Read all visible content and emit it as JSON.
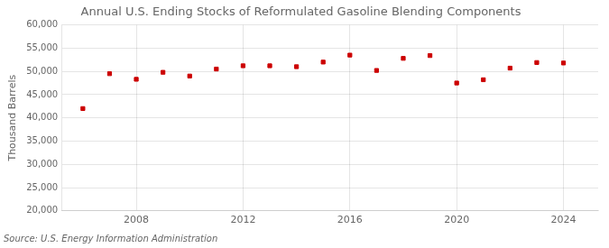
{
  "chart_data": {
    "type": "scatter",
    "title": "Annual U.S. Ending Stocks of Reformulated Gasoline Blending Components",
    "ylabel": "Thousand Barrels",
    "annotations": [
      "Source: U.S. Energy Information Administration"
    ],
    "x": [
      2006,
      2007,
      2008,
      2009,
      2010,
      2011,
      2012,
      2013,
      2014,
      2015,
      2016,
      2017,
      2018,
      2019,
      2020,
      2021,
      2022,
      2023,
      2024
    ],
    "values": [
      42000,
      49500,
      48300,
      49800,
      49000,
      50500,
      51200,
      51200,
      51000,
      52000,
      53500,
      50200,
      52800,
      53400,
      47500,
      48200,
      50700,
      51900,
      51800
    ],
    "color": "#cc0000",
    "marker": "square",
    "xlim": [
      2005.2,
      2025.3
    ],
    "xticks": [
      2008,
      2012,
      2016,
      2020,
      2024
    ],
    "ylim": [
      20000,
      60000
    ],
    "yticks": [
      {
        "value": 20000,
        "label": "20,000"
      },
      {
        "value": 25000,
        "label": "25,000"
      },
      {
        "value": 30000,
        "label": "30,000"
      },
      {
        "value": 35000,
        "label": "35,000"
      },
      {
        "value": 40000,
        "label": "40,000"
      },
      {
        "value": 45000,
        "label": "45,000"
      },
      {
        "value": 50000,
        "label": "50,000"
      },
      {
        "value": 55000,
        "label": "55,000"
      },
      {
        "value": 60000,
        "label": "60,000"
      }
    ],
    "grid": true
  }
}
